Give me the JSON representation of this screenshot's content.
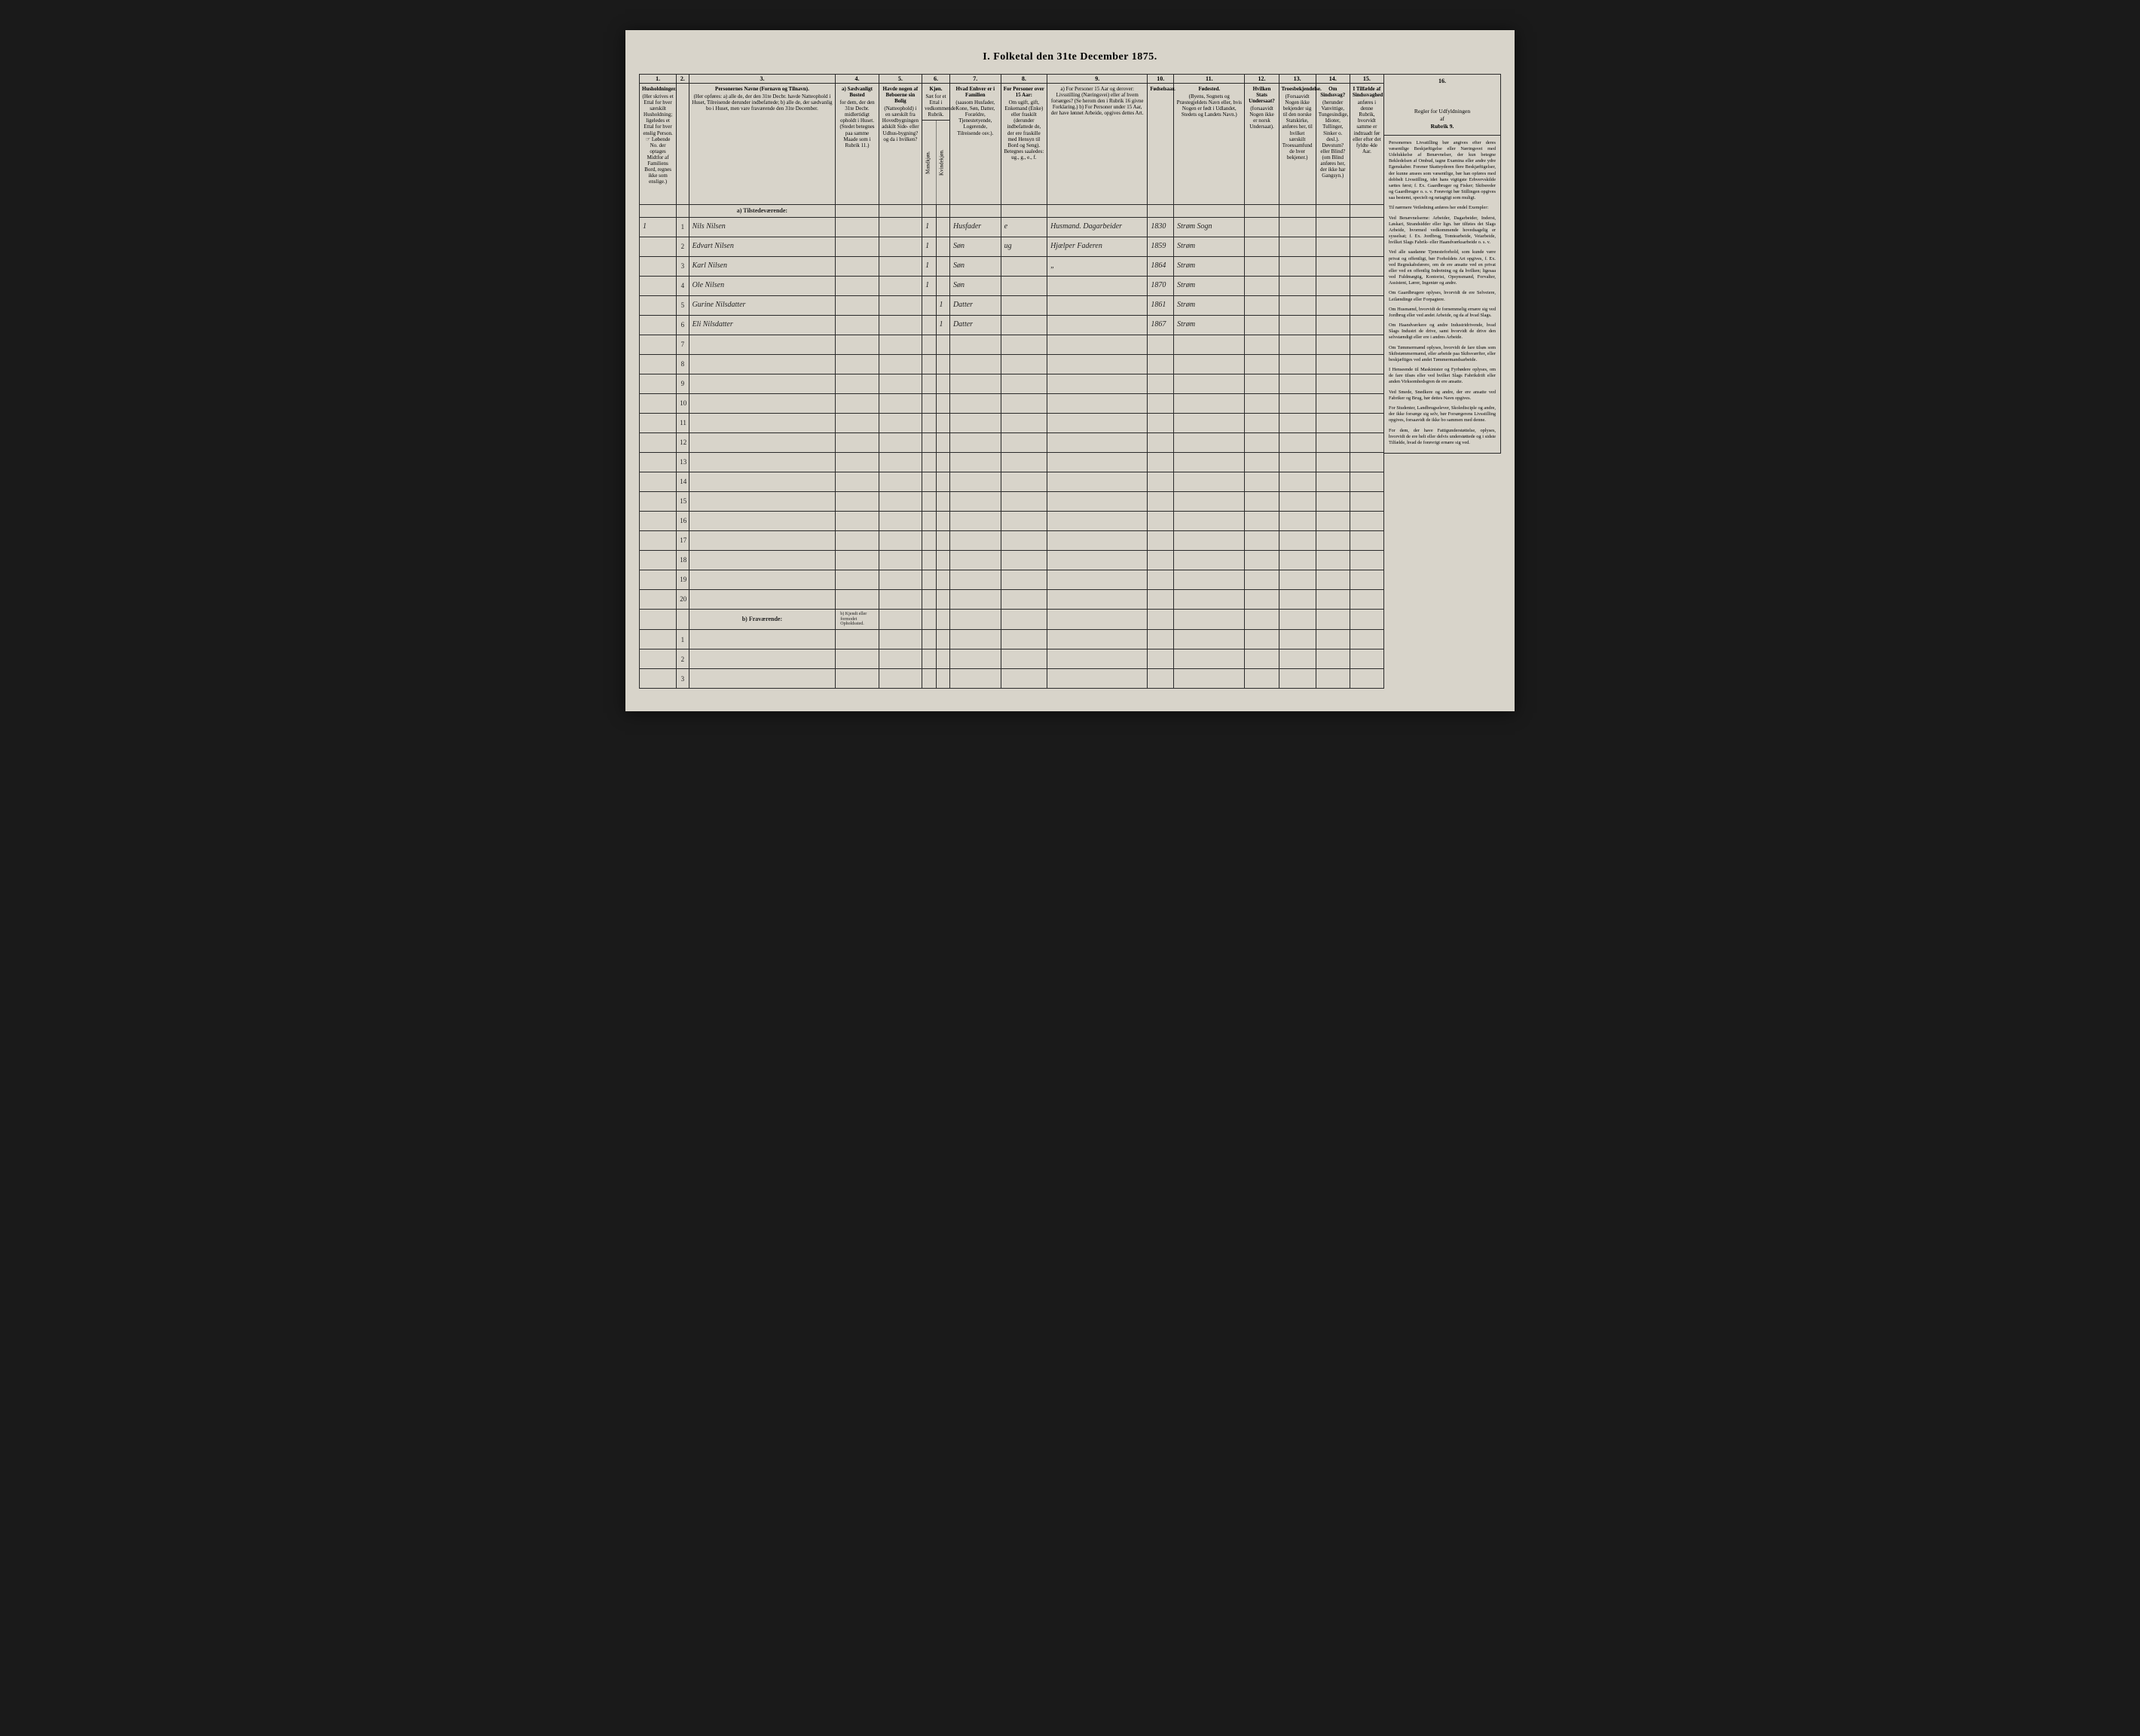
{
  "title": "I. Folketal den 31te December 1875.",
  "columns_top": [
    "1.",
    "2.",
    "3.",
    "4.",
    "5.",
    "6.",
    "7.",
    "8.",
    "9.",
    "10.",
    "11.",
    "12.",
    "13.",
    "14.",
    "15.",
    "16."
  ],
  "headers": {
    "c1": {
      "b": "Husholdninger.",
      "t": "(Her skrives et Ettal for hver særskilt Husholdning; ligeledes et Ettal for hver enslig Person.\n☞ Løbende No. der optages Midtfor af Familiens Bord, regnes ikke som enslige.)"
    },
    "c3": {
      "b": "Personernes Navne (Fornavn og Tilnavn).",
      "t": "(Her opføres:\na) alle de, der den 31te Decbr. havde Natteophold i Huset, Tilreisende derunder indbefattede;\nb) alle de, der sædvanlig bo i Huset, men vare fraværende den 31te December."
    },
    "c4": {
      "b": "a) Sædvanligt Bosted",
      "t": "for dem, der den 31te Decbr. midlertidigt opholdt i Huset. (Stedet betegnes paa samme Maade som i Rubrik 11.)"
    },
    "c5": {
      "b": "Havde nogen af Beboerne sin Bolig",
      "t": "(Natteophold) i en særskilt fra Hovedbygningen adskilt Side- eller Udhus-bygning? og da i hvilken?"
    },
    "c6": {
      "b": "Kjøn.",
      "t": "Sæt for et Ettal i vedkommende Rubrik."
    },
    "c6a": "Mandkjøn.",
    "c6b": "Kvindekjøn.",
    "c7": {
      "b": "Hvad Enhver er i Familien",
      "t": "(saasom Husfader, Kone, Søn, Datter, Forældre, Tjenestetyende, Logerende, Tilreisende osv.)."
    },
    "c8": {
      "b": "For Personer over 15 Aar:",
      "t": "Om ugift, gift, Enkemand (Enke) eller fraskilt (derunder indbefattede de, der ere fraskille med Hensyn til Bord og Seng). Betegnes saaledes: ug., g., e., f."
    },
    "c9": {
      "b": "",
      "t": "a) For Personer 15 Aar og derover: Livsstilling (Næringsvei) eller af hvem forsørges? (Se herom den i Rubrik 16 givne Forklaring.)\nb) For Personer under 15 Aar, der have lønnet Arbeide, opgives dettes Art."
    },
    "c10": {
      "b": "Fødselsaar.",
      "t": ""
    },
    "c11": {
      "b": "Fødested.",
      "t": "(Byens, Sognets og Præstegjeldets Navn eller, hvis Nogen er født i Udlandet, Stedets og Landets Navn.)"
    },
    "c12": {
      "b": "Hvilken Stats Undersaat?",
      "t": "(forsaavidt Nogen ikke er norsk Undersaat)."
    },
    "c13": {
      "b": "Troesbekjendelse.",
      "t": "(Forsaavidt Nogen ikke bekjender sig til den norske Statskirke, anføres her, til hvilket særskilt Troessamfund de hver bekjener.)"
    },
    "c14": {
      "b": "Om Sindssvag?",
      "t": "(herunder Vanvittige, Tungesindige, Idioter, Tullinger, Sinker o. desl.). Døvstum? eller Blind? (om Blind anføres her, der ikke har Gangsyn.)"
    },
    "c15": {
      "b": "I Tilfælde af Sindssvaghed",
      "t": "anføres i denne Rubrik, hvorvidt samme er indtraadt før eller efter det fyldte 4de Aar."
    }
  },
  "section_a": "a) Tilstedeværende:",
  "section_b": "b) Fraværende:",
  "section_b_col4": "b) Kjendt eller formodet Opholdssted.",
  "rows": [
    {
      "n": "1",
      "hh": "1",
      "name": "Nils Nilsen",
      "m": "1",
      "rel": "Husfader",
      "civ": "e",
      "occ": "Husmand. Dagarbeider",
      "year": "1830",
      "place": "Strøm Sogn"
    },
    {
      "n": "2",
      "hh": "",
      "name": "Edvart Nilsen",
      "m": "1",
      "rel": "Søn",
      "civ": "ug",
      "occ": "Hjælper Faderen",
      "year": "1859",
      "place": "Strøm"
    },
    {
      "n": "3",
      "hh": "",
      "name": "Karl Nilsen",
      "m": "1",
      "rel": "Søn",
      "civ": "",
      "occ": "„",
      "year": "1864",
      "place": "Strøm"
    },
    {
      "n": "4",
      "hh": "",
      "name": "Ole Nilsen",
      "m": "1",
      "rel": "Søn",
      "civ": "",
      "occ": "",
      "year": "1870",
      "place": "Strøm"
    },
    {
      "n": "5",
      "hh": "",
      "name": "Gurine Nilsdatter",
      "k": "1",
      "rel": "Datter",
      "civ": "",
      "occ": "",
      "year": "1861",
      "place": "Strøm"
    },
    {
      "n": "6",
      "hh": "",
      "name": "Eli Nilsdatter",
      "k": "1",
      "rel": "Datter",
      "civ": "",
      "occ": "",
      "year": "1867",
      "place": "Strøm"
    }
  ],
  "sidebar": {
    "head_b": "Regler for Udfyldningen",
    "head_af": "af",
    "head_r": "Rubrik 9.",
    "paras": [
      "Personernes Livsstilling bør angives efter deres væsentlige Beskjæftigelse eller Næringsvei med Udelukkelse af Benævnelser, der kun betegne Bekledelsen af Ombud, tagne Examina eller andre ydre Egenskaber. Forener Skatteyderen flere Beskjæftigelser, der kunne ansees som væsentlige, bør han opføres med dobbelt Livsstilling, idet hans vigtigste Erhvervskilde sættes først; f. Ex. Gaardbruger og Fisker; Skibsreder og Gaardbruger o. s. v. Forøvrigt bør Stillingen opgives saa bestemt, specielt og nøiagtigt som muligt.",
      "Til nærmere Veiledning anføres her endel Exempler:",
      "Ved Benævnelserne: Arbeider, Dagarbeider, Inderst, Løskari, Strandsidder eller lign. bør tilføies det Slags Arbeide, hvormed vedkommende hovedsagelig er sysselsat; f. Ex. Jordbrug, Tomtearbeide, Veiarbeide, hvilket Slags Fabrik- eller Haandværksarbeide o. s. v.",
      "Ved alle saadanne Tjenesteforhold, som kunde være privat og offentligt, bør Forholdets Art opgives, f. Ex. ved Regnskabsførere, om de ere ansatte ved en privat eller ved en offentlig Indretning og da hvilken; ligesaa ved Fuldmægtig, Kontorist, Opsynsmand, Forvalter, Assistent, Lærer, Ingeniør og andre.",
      "Om Gaardbrugere oplyses, hvorvidt de ere Selveiere, Leilændinge eller Forpagtere.",
      "Om Husmænd, hvorvidt de fornemmelig ernære sig ved Jordbrug eller ved andet Arbeide, og da af hvad Slags.",
      "Om Haandværkere og andre Industridrivende, hvad Slags Industri de drive, samt hvorvidt de drive den selvstændigt eller ere i andres Arbeide.",
      "Om Tømmermænd oplyses, hvorvidt de fare tilsøs som Skibstømmermænd, eller arbeide paa Skibsværfter, eller beskjæftiges ved andet Tømmermandsarbeide.",
      "I Henseende til Maskinister og Fyrbødere oplyses, om de fare tilsøs eller ved hvilket Slags Fabrikdrift eller anden Virksomhedsgren de ere ansatte.",
      "Ved Smede, Snedkere og andre, der ere ansatte ved Fabriker og Brug, bør dettes Navn opgives.",
      "For Studenter, Landbrugselever, Skoledisciple og andre, der ikke forsørge sig selv, bør Forsørgerens Livsstilling opgives, forsaavidt de ikke bo sammen med denne.",
      "For dem, der have Fattigunderstøttelse, oplyses, hvorvidt de ere helt eller delvis understøttede og i sidste Tilfælde, hvad de forøvrigt ernære sig ved."
    ]
  }
}
